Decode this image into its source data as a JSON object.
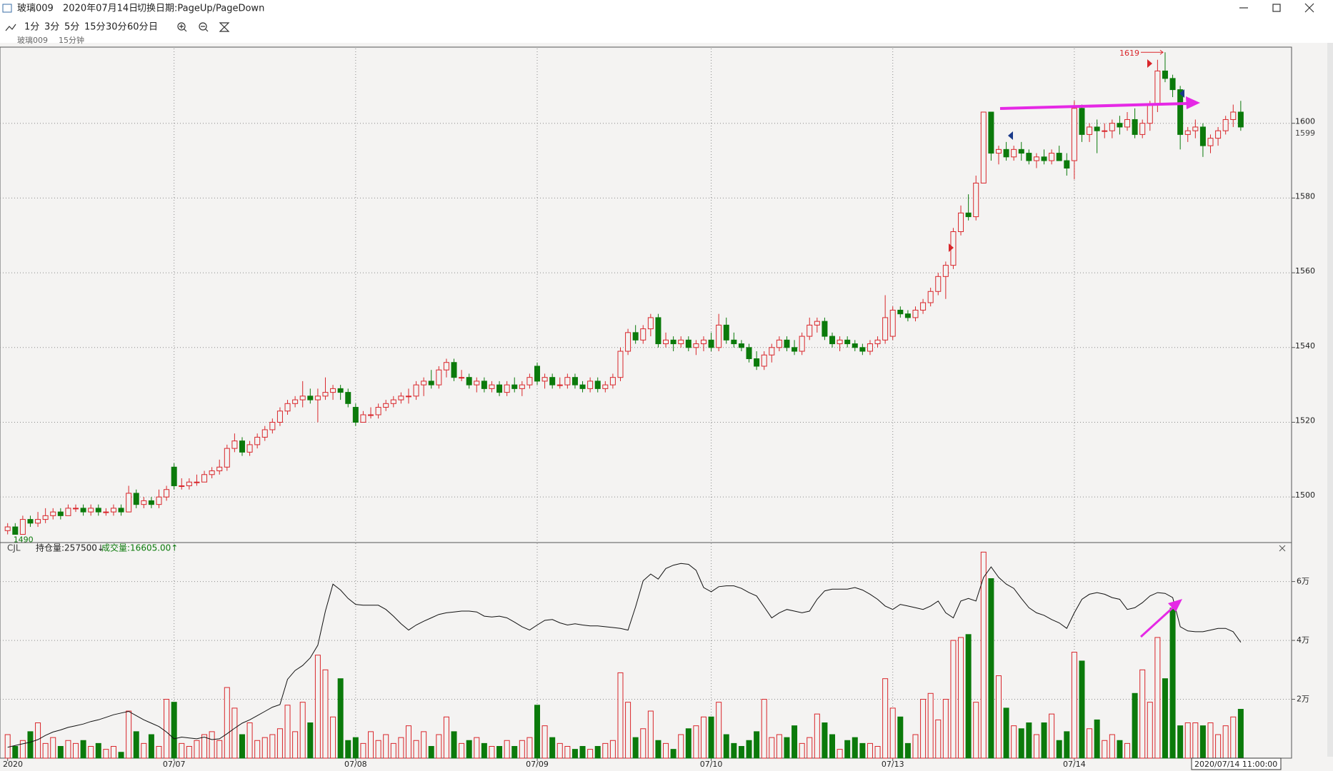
{
  "window": {
    "symbol": "玻璃009",
    "date": "2020年07月14日",
    "hint": "切换日期:PageUp/PageDown"
  },
  "toolbar": [
    "1分",
    "3分",
    "5分",
    "15分",
    "30分",
    "60分",
    "日"
  ],
  "subheader": {
    "symbol": "玻璃009",
    "period": "15分钟"
  },
  "volume_header": {
    "indicator": "CJL",
    "oi_readout": "持仓量:257500↓",
    "volume_readout": "成交量:16605.00↑"
  },
  "cursor_time": "2020/07/14 11:00:00",
  "chart_data": {
    "type": "candlestick",
    "up_color": "#d9262b",
    "down_color": "#0b7a0b",
    "oi_color": "#111111",
    "grid": true,
    "categories": [
      "2020",
      null,
      null,
      null,
      null,
      null,
      null,
      null,
      null,
      null,
      null,
      null,
      null,
      null,
      null,
      null,
      null,
      null,
      null,
      null,
      null,
      null,
      "07/07",
      null,
      null,
      null,
      null,
      null,
      null,
      null,
      null,
      null,
      null,
      null,
      null,
      null,
      null,
      null,
      null,
      null,
      null,
      null,
      null,
      null,
      null,
      null,
      "07/08",
      null,
      null,
      null,
      null,
      null,
      null,
      null,
      null,
      null,
      null,
      null,
      null,
      null,
      null,
      null,
      null,
      null,
      null,
      null,
      null,
      null,
      null,
      null,
      "07/09",
      null,
      null,
      null,
      null,
      null,
      null,
      null,
      null,
      null,
      null,
      null,
      null,
      null,
      null,
      null,
      null,
      null,
      null,
      null,
      null,
      null,
      null,
      "07/10",
      null,
      null,
      null,
      null,
      null,
      null,
      null,
      null,
      null,
      null,
      null,
      null,
      null,
      null,
      null,
      null,
      null,
      null,
      null,
      null,
      null,
      null,
      null,
      "07/13",
      null,
      null,
      null,
      null,
      null,
      null,
      null,
      null,
      null,
      null,
      null,
      null,
      null,
      null,
      null,
      null,
      null,
      null,
      null,
      null,
      null,
      null,
      null,
      "07/14",
      null,
      null,
      null,
      null,
      null,
      null,
      null,
      null,
      null,
      null,
      null,
      null,
      null,
      null,
      null,
      null,
      null,
      null,
      null,
      null,
      null,
      null
    ],
    "ohlc": [
      [
        1491,
        1493,
        1490,
        1492
      ],
      [
        1492,
        1493,
        1490,
        1490
      ],
      [
        1490,
        1495,
        1490,
        1494
      ],
      [
        1494,
        1495,
        1492,
        1493
      ],
      [
        1493,
        1496,
        1492,
        1494
      ],
      [
        1494,
        1497,
        1493,
        1495
      ],
      [
        1495,
        1497,
        1494,
        1496
      ],
      [
        1496,
        1497,
        1494,
        1495
      ],
      [
        1495,
        1498,
        1495,
        1497
      ],
      [
        1497,
        1498,
        1496,
        1497
      ],
      [
        1497,
        1498,
        1495,
        1496
      ],
      [
        1496,
        1498,
        1495,
        1497
      ],
      [
        1497,
        1498,
        1495,
        1496
      ],
      [
        1496,
        1497,
        1495,
        1496
      ],
      [
        1496,
        1498,
        1495,
        1497
      ],
      [
        1497,
        1498,
        1495,
        1496
      ],
      [
        1496,
        1503,
        1496,
        1501
      ],
      [
        1501,
        1502,
        1497,
        1498
      ],
      [
        1498,
        1500,
        1497,
        1499
      ],
      [
        1499,
        1500,
        1497,
        1498
      ],
      [
        1498,
        1502,
        1497,
        1500
      ],
      [
        1500,
        1503,
        1499,
        1502
      ],
      [
        1508,
        1509,
        1502,
        1503
      ],
      [
        1503,
        1505,
        1502,
        1503
      ],
      [
        1503,
        1505,
        1502,
        1504
      ],
      [
        1504,
        1506,
        1503,
        1504
      ],
      [
        1504,
        1507,
        1504,
        1506
      ],
      [
        1506,
        1508,
        1505,
        1507
      ],
      [
        1507,
        1510,
        1506,
        1508
      ],
      [
        1508,
        1514,
        1507,
        1513
      ],
      [
        1513,
        1517,
        1512,
        1515
      ],
      [
        1515,
        1516,
        1511,
        1512
      ],
      [
        1512,
        1515,
        1511,
        1514
      ],
      [
        1514,
        1517,
        1513,
        1516
      ],
      [
        1516,
        1519,
        1515,
        1518
      ],
      [
        1518,
        1521,
        1517,
        1520
      ],
      [
        1520,
        1524,
        1519,
        1523
      ],
      [
        1523,
        1526,
        1522,
        1525
      ],
      [
        1525,
        1527,
        1524,
        1526
      ],
      [
        1526,
        1531,
        1524,
        1527
      ],
      [
        1527,
        1529,
        1525,
        1526
      ],
      [
        1526,
        1529,
        1520,
        1527
      ],
      [
        1527,
        1532,
        1526,
        1528
      ],
      [
        1528,
        1530,
        1526,
        1529
      ],
      [
        1529,
        1530,
        1526,
        1528
      ],
      [
        1528,
        1529,
        1524,
        1525
      ],
      [
        1524,
        1525,
        1519,
        1520
      ],
      [
        1520,
        1523,
        1520,
        1522
      ],
      [
        1522,
        1524,
        1521,
        1522
      ],
      [
        1522,
        1525,
        1521,
        1524
      ],
      [
        1524,
        1526,
        1523,
        1525
      ],
      [
        1525,
        1527,
        1524,
        1526
      ],
      [
        1526,
        1528,
        1525,
        1527
      ],
      [
        1527,
        1529,
        1525,
        1527
      ],
      [
        1527,
        1531,
        1526,
        1530
      ],
      [
        1530,
        1532,
        1527,
        1531
      ],
      [
        1531,
        1534,
        1529,
        1530
      ],
      [
        1530,
        1535,
        1529,
        1534
      ],
      [
        1534,
        1537,
        1532,
        1536
      ],
      [
        1536,
        1537,
        1531,
        1532
      ],
      [
        1532,
        1534,
        1531,
        1532
      ],
      [
        1532,
        1533,
        1529,
        1530
      ],
      [
        1530,
        1532,
        1528,
        1531
      ],
      [
        1531,
        1532,
        1528,
        1529
      ],
      [
        1529,
        1531,
        1528,
        1530
      ],
      [
        1530,
        1531,
        1527,
        1528
      ],
      [
        1528,
        1531,
        1527,
        1530
      ],
      [
        1530,
        1532,
        1528,
        1529
      ],
      [
        1529,
        1531,
        1527,
        1530
      ],
      [
        1530,
        1533,
        1529,
        1532
      ],
      [
        1535,
        1536,
        1530,
        1531
      ],
      [
        1531,
        1533,
        1529,
        1532
      ],
      [
        1532,
        1533,
        1529,
        1530
      ],
      [
        1530,
        1532,
        1529,
        1530
      ],
      [
        1530,
        1533,
        1529,
        1532
      ],
      [
        1532,
        1533,
        1529,
        1530
      ],
      [
        1530,
        1531,
        1528,
        1529
      ],
      [
        1529,
        1532,
        1528,
        1531
      ],
      [
        1531,
        1532,
        1528,
        1529
      ],
      [
        1529,
        1531,
        1528,
        1530
      ],
      [
        1530,
        1533,
        1529,
        1532
      ],
      [
        1532,
        1540,
        1531,
        1539
      ],
      [
        1539,
        1545,
        1538,
        1544
      ],
      [
        1544,
        1546,
        1541,
        1542
      ],
      [
        1542,
        1546,
        1541,
        1545
      ],
      [
        1545,
        1549,
        1543,
        1548
      ],
      [
        1548,
        1549,
        1540,
        1541
      ],
      [
        1541,
        1544,
        1540,
        1542
      ],
      [
        1542,
        1543,
        1539,
        1541
      ],
      [
        1541,
        1543,
        1540,
        1542
      ],
      [
        1542,
        1543,
        1539,
        1540
      ],
      [
        1540,
        1542,
        1538,
        1541
      ],
      [
        1541,
        1543,
        1539,
        1542
      ],
      [
        1542,
        1544,
        1539,
        1540
      ],
      [
        1540,
        1549,
        1539,
        1546
      ],
      [
        1546,
        1548,
        1541,
        1542
      ],
      [
        1542,
        1544,
        1540,
        1541
      ],
      [
        1541,
        1542,
        1539,
        1540
      ],
      [
        1540,
        1541,
        1536,
        1537
      ],
      [
        1537,
        1539,
        1534,
        1535
      ],
      [
        1535,
        1539,
        1534,
        1538
      ],
      [
        1538,
        1541,
        1536,
        1540
      ],
      [
        1540,
        1543,
        1539,
        1542
      ],
      [
        1542,
        1543,
        1539,
        1540
      ],
      [
        1540,
        1542,
        1538,
        1539
      ],
      [
        1539,
        1544,
        1538,
        1543
      ],
      [
        1543,
        1548,
        1542,
        1546
      ],
      [
        1546,
        1548,
        1544,
        1547
      ],
      [
        1547,
        1548,
        1542,
        1543
      ],
      [
        1543,
        1544,
        1540,
        1541
      ],
      [
        1541,
        1543,
        1539,
        1542
      ],
      [
        1542,
        1543,
        1540,
        1541
      ],
      [
        1541,
        1542,
        1539,
        1540
      ],
      [
        1540,
        1541,
        1538,
        1539
      ],
      [
        1539,
        1542,
        1538,
        1541
      ],
      [
        1541,
        1543,
        1540,
        1542
      ],
      [
        1542,
        1554,
        1541,
        1548
      ],
      [
        1543,
        1551,
        1542,
        1550
      ],
      [
        1550,
        1551,
        1548,
        1549
      ],
      [
        1549,
        1550,
        1547,
        1548
      ],
      [
        1548,
        1551,
        1547,
        1550
      ],
      [
        1550,
        1553,
        1549,
        1552
      ],
      [
        1552,
        1556,
        1551,
        1555
      ],
      [
        1555,
        1560,
        1554,
        1559
      ],
      [
        1559,
        1563,
        1553,
        1562
      ],
      [
        1562,
        1572,
        1561,
        1571
      ],
      [
        1571,
        1578,
        1570,
        1576
      ],
      [
        1576,
        1581,
        1574,
        1575
      ],
      [
        1575,
        1586,
        1574,
        1584
      ],
      [
        1584,
        1603,
        1584,
        1603
      ],
      [
        1603,
        1603,
        1590,
        1592
      ],
      [
        1592,
        1594,
        1589,
        1593
      ],
      [
        1593,
        1595,
        1590,
        1591
      ],
      [
        1591,
        1594,
        1590,
        1593
      ],
      [
        1593,
        1595,
        1590,
        1592
      ],
      [
        1592,
        1593,
        1589,
        1590
      ],
      [
        1590,
        1592,
        1588,
        1591
      ],
      [
        1591,
        1593,
        1589,
        1590
      ],
      [
        1590,
        1593,
        1589,
        1592
      ],
      [
        1592,
        1594,
        1590,
        1590
      ],
      [
        1590,
        1592,
        1586,
        1588
      ],
      [
        1590,
        1606,
        1585,
        1604
      ],
      [
        1604,
        1605,
        1595,
        1597
      ],
      [
        1597,
        1600,
        1595,
        1599
      ],
      [
        1599,
        1601,
        1592,
        1598
      ],
      [
        1598,
        1600,
        1596,
        1598
      ],
      [
        1598,
        1601,
        1596,
        1600
      ],
      [
        1600,
        1602,
        1597,
        1599
      ],
      [
        1599,
        1603,
        1598,
        1601
      ],
      [
        1601,
        1604,
        1596,
        1597
      ],
      [
        1597,
        1601,
        1596,
        1600
      ],
      [
        1600,
        1606,
        1598,
        1605
      ],
      [
        1605,
        1617,
        1603,
        1614
      ],
      [
        1614,
        1619,
        1611,
        1612
      ],
      [
        1612,
        1613,
        1607,
        1609
      ],
      [
        1609,
        1610,
        1593,
        1597
      ],
      [
        1597,
        1599,
        1595,
        1598
      ],
      [
        1598,
        1601,
        1596,
        1599
      ],
      [
        1599,
        1600,
        1591,
        1594
      ],
      [
        1594,
        1597,
        1592,
        1596
      ],
      [
        1596,
        1599,
        1594,
        1598
      ],
      [
        1598,
        1602,
        1597,
        1601
      ],
      [
        1601,
        1605,
        1599,
        1603
      ],
      [
        1603,
        1606,
        1598,
        1599
      ]
    ],
    "volume": [
      8000,
      4000,
      6000,
      9000,
      12000,
      5000,
      7000,
      4000,
      6000,
      5000,
      6000,
      4000,
      5000,
      3000,
      4000,
      2000,
      16000,
      9000,
      5000,
      8000,
      4000,
      20000,
      19000,
      5000,
      4000,
      6000,
      8000,
      9000,
      6000,
      24000,
      17000,
      8000,
      12000,
      6000,
      7000,
      8000,
      10000,
      18000,
      9000,
      19000,
      12000,
      35000,
      30000,
      14000,
      27000,
      6000,
      7000,
      5000,
      9000,
      6000,
      8000,
      5000,
      7000,
      11000,
      6000,
      9000,
      4000,
      8000,
      14000,
      9000,
      5000,
      6000,
      7000,
      5000,
      4000,
      4000,
      6000,
      4000,
      6000,
      7000,
      18000,
      11000,
      7000,
      5000,
      4000,
      3000,
      4000,
      3000,
      4000,
      5000,
      6000,
      29000,
      19000,
      7000,
      10000,
      16000,
      6000,
      5000,
      3000,
      8000,
      10000,
      11000,
      14000,
      14000,
      19000,
      8000,
      5000,
      4000,
      6000,
      9000,
      20000,
      7000,
      8000,
      7000,
      11000,
      5000,
      7000,
      15000,
      12000,
      8000,
      3000,
      6000,
      7000,
      5000,
      5000,
      4000,
      27000,
      17000,
      14000,
      5000,
      8000,
      20000,
      22000,
      13000,
      20000,
      40000,
      41000,
      42000,
      19000,
      70000,
      61000,
      28000,
      17000,
      11000,
      10000,
      12000,
      8000,
      12000,
      15000,
      6000,
      9000,
      36000,
      33000,
      10000,
      13000,
      6000,
      8000,
      6000,
      5000,
      22000,
      30000,
      19000,
      41000,
      27000,
      51000,
      11000,
      12000,
      12000,
      11000,
      12000,
      8000,
      11000,
      14000,
      16605
    ],
    "open_interest": [
      232600,
      233000,
      233400,
      233800,
      234400,
      235400,
      236200,
      236700,
      237300,
      237700,
      238100,
      238700,
      239100,
      239700,
      240300,
      240700,
      241100,
      240100,
      239100,
      238300,
      237500,
      236200,
      234600,
      235000,
      234800,
      234600,
      235000,
      234400,
      234600,
      235800,
      237100,
      238300,
      239100,
      240100,
      241100,
      242100,
      242700,
      248700,
      250800,
      252000,
      253800,
      256800,
      264900,
      271300,
      269900,
      267900,
      266500,
      266300,
      266300,
      266300,
      265300,
      263700,
      261900,
      260400,
      261600,
      262500,
      263300,
      264100,
      264500,
      264700,
      264900,
      264900,
      264700,
      263700,
      263500,
      263700,
      263300,
      262300,
      261200,
      260400,
      261600,
      262700,
      262900,
      262100,
      261600,
      261900,
      261600,
      261400,
      261400,
      261200,
      261000,
      260800,
      260400,
      265900,
      272100,
      273700,
      272500,
      275000,
      275800,
      276200,
      276000,
      274600,
      270500,
      269500,
      270700,
      270900,
      270900,
      270300,
      269300,
      268500,
      265900,
      263300,
      264500,
      265300,
      264900,
      264500,
      264900,
      267700,
      269700,
      270100,
      270100,
      270100,
      270500,
      269900,
      268900,
      267700,
      266100,
      265300,
      266500,
      266100,
      265700,
      265300,
      266100,
      267300,
      264500,
      263300,
      267300,
      267900,
      267300,
      272900,
      275400,
      272900,
      271300,
      270300,
      267900,
      265700,
      264500,
      263900,
      262900,
      262100,
      260800,
      264500,
      267700,
      268900,
      269300,
      268900,
      268100,
      267700,
      265300,
      265700,
      266900,
      268500,
      269300,
      269100,
      268100,
      261200,
      260200,
      260000,
      260000,
      260400,
      260800,
      260800,
      260000,
      257500
    ],
    "ylim": [
      1488,
      1620
    ],
    "yticks": [
      1500,
      1520,
      1540,
      1560,
      1580,
      1600
    ],
    "volume_ylim": [
      0,
      73000
    ],
    "volume_yticks": [
      {
        "value": 20000,
        "label": "2万"
      },
      {
        "value": 40000,
        "label": "4万"
      },
      {
        "value": 60000,
        "label": "6万"
      }
    ],
    "y2lim": [
      230000,
      281000
    ],
    "high_label": 1619,
    "low_label": 1490,
    "last_price": 1599
  }
}
